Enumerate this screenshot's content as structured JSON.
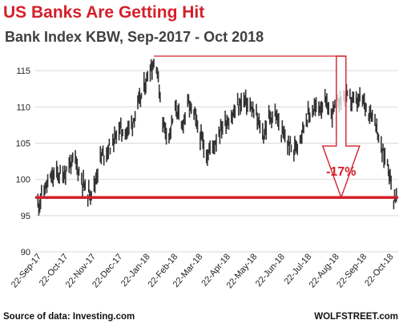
{
  "header": {
    "title": "US Banks Are Getting Hit",
    "subtitle": "Bank Index KBW, Sep-2017 - Oct 2018"
  },
  "footer": {
    "source": "Source of data: Investing.com",
    "brand": "WOLFSTREET.com"
  },
  "colors": {
    "accent": "#d4202a",
    "candles": "#333333",
    "grid": "#d9d9d9"
  },
  "chart_data": {
    "type": "line",
    "title": "US Banks Are Getting Hit",
    "subtitle": "Bank Index KBW, Sep-2017 - Oct 2018",
    "ylim": [
      90,
      117
    ],
    "yticks": [
      90,
      95,
      100,
      105,
      110,
      115
    ],
    "xticks": [
      "22-Sep-17",
      "22-Oct-17",
      "22-Nov-17",
      "22-Dec-17",
      "22-Jan-18",
      "22-Feb-18",
      "22-Mar-18",
      "22-Apr-18",
      "22-May-18",
      "22-Jun-18",
      "22-Jul-18",
      "22-Aug-18",
      "22-Sep-18",
      "22-Oct-18"
    ],
    "xlim": [
      "2017-09-15",
      "2018-10-27"
    ],
    "grid": "horizontal",
    "series": [
      {
        "x": [
          "2017-09-18",
          "2017-09-25",
          "2017-10-02",
          "2017-10-09",
          "2017-10-16",
          "2017-10-23",
          "2017-10-30",
          "2017-11-06",
          "2017-11-13",
          "2017-11-20",
          "2017-11-27",
          "2017-12-04",
          "2017-12-11",
          "2017-12-18",
          "2017-12-26",
          "2018-01-02",
          "2018-01-08",
          "2018-01-16",
          "2018-01-22",
          "2018-01-29",
          "2018-02-05",
          "2018-02-12",
          "2018-02-20",
          "2018-02-26",
          "2018-03-05",
          "2018-03-12",
          "2018-03-19",
          "2018-03-26",
          "2018-04-02",
          "2018-04-09",
          "2018-04-16",
          "2018-04-23",
          "2018-04-30",
          "2018-05-07",
          "2018-05-14",
          "2018-05-21",
          "2018-05-29",
          "2018-06-04",
          "2018-06-11",
          "2018-06-18",
          "2018-06-25",
          "2018-07-02",
          "2018-07-09",
          "2018-07-16",
          "2018-07-23",
          "2018-07-30",
          "2018-08-06",
          "2018-08-13",
          "2018-08-20",
          "2018-08-27",
          "2018-09-04",
          "2018-09-10",
          "2018-09-17",
          "2018-09-24",
          "2018-10-01",
          "2018-10-08",
          "2018-10-15",
          "2018-10-22"
        ],
        "values": [
          96.5,
          98.5,
          100.0,
          100.8,
          100.5,
          102.0,
          102.5,
          100.0,
          98.0,
          99.0,
          103.0,
          104.0,
          105.0,
          107.0,
          106.5,
          108.0,
          110.0,
          113.0,
          115.5,
          116.0,
          108.0,
          106.0,
          110.0,
          107.0,
          110.5,
          109.0,
          106.0,
          103.5,
          104.5,
          106.5,
          108.0,
          108.5,
          110.0,
          111.0,
          110.0,
          108.5,
          106.0,
          108.5,
          109.0,
          106.5,
          105.0,
          104.0,
          106.0,
          108.5,
          109.5,
          110.0,
          110.5,
          109.0,
          110.5,
          111.5,
          111.0,
          110.5,
          111.0,
          109.5,
          108.5,
          104.0,
          102.5,
          97.5
        ]
      }
    ],
    "annotations": {
      "peak_level": 117,
      "support_level": 97.5,
      "peak_date": "2018-01-26",
      "arrow_date": "2018-08-24",
      "drop_label": "-17%"
    }
  }
}
